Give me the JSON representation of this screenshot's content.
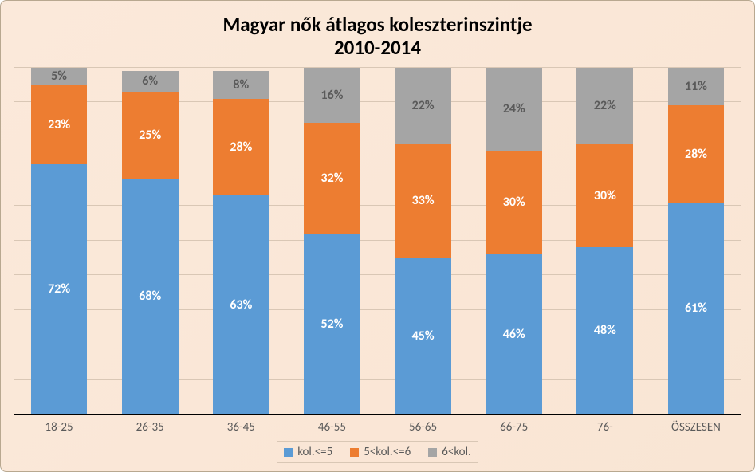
{
  "chart": {
    "type": "stacked-bar",
    "title_line1": "Magyar nők átlagos koleszterinszintje",
    "title_line2": "2010-2014",
    "title_fontsize": 25,
    "background_gradient": [
      "#fbe9da",
      "#f9e5d4"
    ],
    "border_color": "#b8a890",
    "grid_color": "#d9c7b5",
    "axis_color": "#000000",
    "label_color": "#5a5a5a",
    "segment_label_fontsize": 16,
    "x_label_fontsize": 15,
    "legend_fontsize": 15,
    "bar_width_ratio": 0.62,
    "ylim": [
      0,
      100
    ],
    "ytick_step": 10,
    "categories": [
      "18-25",
      "26-35",
      "36-45",
      "46-55",
      "56-65",
      "66-75",
      "76-",
      "ÖSSZESEN"
    ],
    "series": [
      {
        "name": "kol.<=5",
        "color": "#5b9bd5",
        "text_color": "#ffffff",
        "values": [
          72,
          68,
          63,
          52,
          45,
          46,
          48,
          61
        ]
      },
      {
        "name": "5<kol.<=6",
        "color": "#ed7d31",
        "text_color": "#ffffff",
        "values": [
          23,
          25,
          28,
          32,
          33,
          30,
          30,
          28
        ]
      },
      {
        "name": "6<kol.",
        "color": "#a5a5a5",
        "text_color": "#5a5a5a",
        "values": [
          5,
          6,
          8,
          16,
          22,
          24,
          22,
          11
        ]
      }
    ]
  }
}
